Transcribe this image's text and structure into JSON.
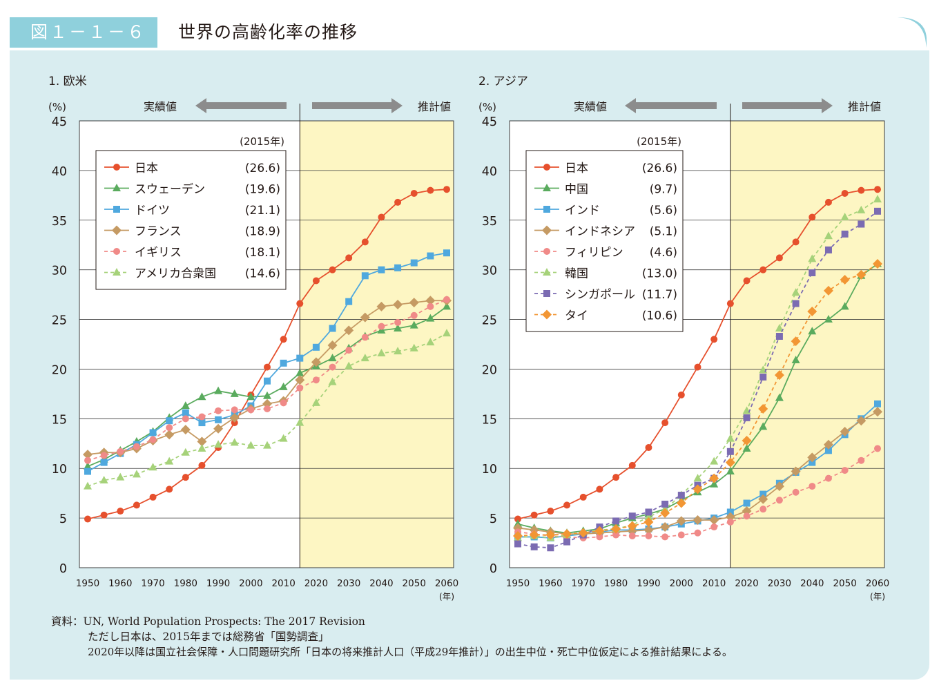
{
  "header": {
    "figure_number": "図１－１－６",
    "title": "世界の高齢化率の推移"
  },
  "colors": {
    "panel_bg": "#d9edf0",
    "header_accent": "#8fd0dc",
    "projection_bg": "#fdf6c3",
    "arrow": "#8c8c8c"
  },
  "common": {
    "y_unit": "(%)",
    "x_unit": "(年)",
    "actual_label": "実績値",
    "projected_label": "推計値",
    "legend_title": "(2015年)"
  },
  "chart_data": [
    {
      "type": "line",
      "title": "1. 欧米",
      "xlabel": "",
      "ylabel": "(%)",
      "x": [
        1950,
        1955,
        1960,
        1965,
        1970,
        1975,
        1980,
        1985,
        1990,
        1995,
        2000,
        2005,
        2010,
        2015,
        2020,
        2025,
        2030,
        2035,
        2040,
        2045,
        2050,
        2055,
        2060
      ],
      "x_ticks": [
        1950,
        1960,
        1970,
        1980,
        1990,
        2000,
        2010,
        2020,
        2030,
        2040,
        2050,
        2060
      ],
      "y_ticks": [
        0,
        5,
        10,
        15,
        20,
        25,
        30,
        35,
        40,
        45
      ],
      "xlim": [
        1950,
        2060
      ],
      "ylim": [
        0,
        45
      ],
      "projection_start": 2015,
      "grid": "horizontal",
      "legend_position": "top-left",
      "series": [
        {
          "name": "日本",
          "value_2015": "(26.6)",
          "color": "#e6502d",
          "marker": "circle",
          "style": "solid",
          "values": [
            4.9,
            5.3,
            5.7,
            6.3,
            7.1,
            7.9,
            9.1,
            10.3,
            12.1,
            14.6,
            17.4,
            20.2,
            23.0,
            26.6,
            28.9,
            30.0,
            31.2,
            32.8,
            35.3,
            36.8,
            37.7,
            38.0,
            38.1
          ]
        },
        {
          "name": "スウェーデン",
          "value_2015": "(19.6)",
          "color": "#5aab5e",
          "marker": "triangle",
          "style": "solid",
          "values": [
            10.2,
            10.9,
            11.8,
            12.7,
            13.7,
            15.1,
            16.3,
            17.2,
            17.8,
            17.5,
            17.2,
            17.3,
            18.2,
            19.6,
            20.3,
            21.1,
            22.1,
            23.3,
            23.9,
            24.1,
            24.4,
            25.1,
            26.3
          ]
        },
        {
          "name": "ドイツ",
          "value_2015": "(21.1)",
          "color": "#4fa8de",
          "marker": "square",
          "style": "solid",
          "values": [
            9.7,
            10.6,
            11.5,
            12.4,
            13.6,
            14.8,
            15.6,
            14.6,
            14.9,
            15.4,
            16.3,
            18.8,
            20.6,
            21.1,
            22.2,
            24.1,
            26.8,
            29.4,
            30.0,
            30.2,
            30.7,
            31.4,
            31.7
          ]
        },
        {
          "name": "フランス",
          "value_2015": "(18.9)",
          "color": "#c59a63",
          "marker": "diamond",
          "style": "solid",
          "values": [
            11.4,
            11.6,
            11.6,
            12.0,
            12.8,
            13.4,
            13.9,
            12.7,
            14.0,
            15.1,
            16.0,
            16.5,
            16.8,
            18.9,
            20.7,
            22.4,
            23.9,
            25.2,
            26.3,
            26.5,
            26.7,
            26.9,
            26.9
          ]
        },
        {
          "name": "イギリス",
          "value_2015": "(18.1)",
          "color": "#f08a88",
          "marker": "circle",
          "style": "dashed",
          "values": [
            10.8,
            11.3,
            11.7,
            12.2,
            12.9,
            14.1,
            15.0,
            15.2,
            15.8,
            15.9,
            15.9,
            16.0,
            16.6,
            18.1,
            18.9,
            20.2,
            21.9,
            23.2,
            24.3,
            24.7,
            25.4,
            26.3,
            27.0
          ]
        },
        {
          "name": "アメリカ合衆国",
          "value_2015": "(14.6)",
          "color": "#a6d27a",
          "marker": "triangle",
          "style": "dashed",
          "values": [
            8.2,
            8.8,
            9.1,
            9.4,
            10.1,
            10.7,
            11.6,
            12.0,
            12.4,
            12.6,
            12.3,
            12.3,
            13.0,
            14.6,
            16.6,
            18.7,
            20.3,
            21.1,
            21.6,
            21.8,
            22.1,
            22.7,
            23.6
          ]
        }
      ]
    },
    {
      "type": "line",
      "title": "2. アジア",
      "xlabel": "",
      "ylabel": "(%)",
      "x": [
        1950,
        1955,
        1960,
        1965,
        1970,
        1975,
        1980,
        1985,
        1990,
        1995,
        2000,
        2005,
        2010,
        2015,
        2020,
        2025,
        2030,
        2035,
        2040,
        2045,
        2050,
        2055,
        2060
      ],
      "x_ticks": [
        1950,
        1960,
        1970,
        1980,
        1990,
        2000,
        2010,
        2020,
        2030,
        2040,
        2050,
        2060
      ],
      "y_ticks": [
        0,
        5,
        10,
        15,
        20,
        25,
        30,
        35,
        40,
        45
      ],
      "xlim": [
        1950,
        2060
      ],
      "ylim": [
        0,
        45
      ],
      "projection_start": 2015,
      "grid": "horizontal",
      "legend_position": "top-left",
      "series": [
        {
          "name": "日本",
          "value_2015": "(26.6)",
          "color": "#e6502d",
          "marker": "circle",
          "style": "solid",
          "values": [
            4.9,
            5.3,
            5.7,
            6.3,
            7.1,
            7.9,
            9.1,
            10.3,
            12.1,
            14.6,
            17.4,
            20.2,
            23.0,
            26.6,
            28.9,
            30.0,
            31.2,
            32.8,
            35.3,
            36.8,
            37.7,
            38.0,
            38.1
          ]
        },
        {
          "name": "中国",
          "value_2015": "(9.7)",
          "color": "#5aab5e",
          "marker": "triangle",
          "style": "solid",
          "values": [
            4.4,
            4.0,
            3.7,
            3.5,
            3.7,
            3.9,
            4.5,
            5.0,
            5.4,
            5.9,
            6.8,
            7.6,
            8.4,
            9.7,
            12.0,
            14.2,
            17.1,
            20.9,
            23.8,
            25.0,
            26.3,
            29.4,
            30.6
          ]
        },
        {
          "name": "インド",
          "value_2015": "(5.6)",
          "color": "#4fa8de",
          "marker": "square",
          "style": "solid",
          "values": [
            3.1,
            3.1,
            3.0,
            3.2,
            3.4,
            3.6,
            3.8,
            3.8,
            3.9,
            4.1,
            4.4,
            4.7,
            5.0,
            5.6,
            6.5,
            7.4,
            8.5,
            9.6,
            10.6,
            11.8,
            13.4,
            15.0,
            16.5
          ]
        },
        {
          "name": "インドネシア",
          "value_2015": "(5.1)",
          "color": "#c59a63",
          "marker": "diamond",
          "style": "solid",
          "values": [
            4.0,
            3.8,
            3.6,
            3.4,
            3.4,
            3.5,
            3.6,
            3.7,
            3.8,
            4.1,
            4.7,
            4.8,
            4.8,
            5.1,
            5.7,
            6.9,
            8.2,
            9.7,
            11.1,
            12.4,
            13.7,
            14.8,
            15.7
          ]
        },
        {
          "name": "フィリピン",
          "value_2015": "(4.6)",
          "color": "#f08a88",
          "marker": "circle",
          "style": "dashed",
          "values": [
            3.6,
            3.4,
            3.2,
            3.1,
            3.0,
            3.1,
            3.3,
            3.2,
            3.2,
            3.1,
            3.3,
            3.5,
            4.1,
            4.6,
            5.2,
            5.9,
            6.8,
            7.6,
            8.2,
            9.0,
            9.8,
            10.8,
            12.0
          ]
        },
        {
          "name": "韓国",
          "value_2015": "(13.0)",
          "color": "#a6d27a",
          "marker": "triangle",
          "style": "dashed",
          "values": [
            3.0,
            3.2,
            3.0,
            3.3,
            3.5,
            3.8,
            3.9,
            4.3,
            5.1,
            5.9,
            7.3,
            9.0,
            10.7,
            13.0,
            15.8,
            19.9,
            24.1,
            27.7,
            31.1,
            33.4,
            35.3,
            36.0,
            37.1
          ]
        },
        {
          "name": "シンガポール",
          "value_2015": "(11.7)",
          "color": "#7b6bb2",
          "marker": "square",
          "style": "dashed",
          "values": [
            2.4,
            2.1,
            2.0,
            2.6,
            3.3,
            4.1,
            4.7,
            5.2,
            5.6,
            6.4,
            7.3,
            8.3,
            9.0,
            11.7,
            15.1,
            19.2,
            23.3,
            26.6,
            29.7,
            32.0,
            33.6,
            34.6,
            35.9
          ]
        },
        {
          "name": "タイ",
          "value_2015": "(10.6)",
          "color": "#f29634",
          "marker": "diamond",
          "style": "dashed",
          "values": [
            3.2,
            3.3,
            3.3,
            3.4,
            3.5,
            3.7,
            3.9,
            4.2,
            4.6,
            5.5,
            6.5,
            7.9,
            9.0,
            10.6,
            12.8,
            16.0,
            19.4,
            22.8,
            25.8,
            27.9,
            29.0,
            29.5,
            30.6
          ]
        }
      ]
    }
  ],
  "source": {
    "line1": "資料：UN, World Population Prospects: The 2017 Revision",
    "line2": "ただし日本は、2015年までは総務省「国勢調査」",
    "line3": "2020年以降は国立社会保障・人口問題研究所「日本の将来推計人口（平成29年推計）」の出生中位・死亡中位仮定による推計結果による。"
  }
}
